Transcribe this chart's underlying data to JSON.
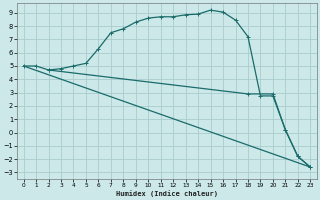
{
  "xlabel": "Humidex (Indice chaleur)",
  "bg_color": "#cce8e8",
  "grid_color": "#aacccc",
  "line_color": "#1a6b6b",
  "xlim": [
    -0.5,
    23.5
  ],
  "ylim": [
    -3.5,
    9.7
  ],
  "xticks": [
    0,
    1,
    2,
    3,
    4,
    5,
    6,
    7,
    8,
    9,
    10,
    11,
    12,
    13,
    14,
    15,
    16,
    17,
    18,
    19,
    20,
    21,
    22,
    23
  ],
  "yticks": [
    -3,
    -2,
    -1,
    0,
    1,
    2,
    3,
    4,
    5,
    6,
    7,
    8,
    9
  ],
  "curve1_x": [
    0,
    1,
    2,
    3,
    4,
    5,
    6,
    7,
    8,
    9,
    10,
    11,
    12,
    13,
    14,
    15,
    16,
    17,
    18,
    19,
    20,
    21,
    22,
    23
  ],
  "curve1_y": [
    5.0,
    5.0,
    4.7,
    4.8,
    5.0,
    5.2,
    6.3,
    7.5,
    7.8,
    8.3,
    8.6,
    8.7,
    8.7,
    8.85,
    8.9,
    9.2,
    9.05,
    8.45,
    7.2,
    2.75,
    2.75,
    0.2,
    -1.8,
    -2.6
  ],
  "curve2_x": [
    0,
    23
  ],
  "curve2_y": [
    5.0,
    -2.6
  ],
  "curve3_x": [
    2,
    18,
    20,
    21,
    22,
    23
  ],
  "curve3_y": [
    4.7,
    2.9,
    2.9,
    0.2,
    -1.8,
    -2.6
  ]
}
